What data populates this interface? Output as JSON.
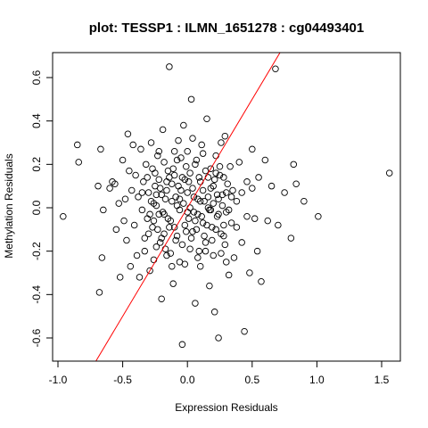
{
  "chart_data": {
    "type": "scatter",
    "title": "plot: TESSP1 : ILMN_1651278 : cg04493401",
    "xlabel": "Expression Residuals",
    "ylabel": "Methylation Residuals",
    "xlim": [
      -1.0,
      1.6
    ],
    "ylim": [
      -0.7,
      0.7
    ],
    "x_ticks": [
      -1.0,
      -0.5,
      0.0,
      0.5,
      1.0,
      1.5
    ],
    "x_tick_labels": [
      "-1.0",
      "-0.5",
      "0.0",
      "0.5",
      "1.0",
      "1.5"
    ],
    "y_ticks": [
      -0.6,
      -0.4,
      -0.2,
      0.0,
      0.2,
      0.4,
      0.6
    ],
    "y_tick_labels": [
      "-0.6",
      "-0.4",
      "-0.2",
      "0.0",
      "0.2",
      "0.4",
      "0.6"
    ],
    "grid": false,
    "point_style": "open-circle",
    "regression_line": {
      "slope": 1.0,
      "intercept": 0.0,
      "color": "#ff0000"
    },
    "points": [
      [
        -0.96,
        -0.04
      ],
      [
        -0.85,
        0.29
      ],
      [
        -0.84,
        0.21
      ],
      [
        -0.69,
        0.1
      ],
      [
        -0.68,
        -0.39
      ],
      [
        -0.67,
        0.27
      ],
      [
        -0.66,
        -0.23
      ],
      [
        -0.65,
        -0.01
      ],
      [
        -0.6,
        0.09
      ],
      [
        -0.58,
        0.12
      ],
      [
        -0.56,
        0.11
      ],
      [
        -0.55,
        -0.1
      ],
      [
        -0.53,
        0.02
      ],
      [
        -0.52,
        -0.32
      ],
      [
        -0.5,
        0.22
      ],
      [
        -0.49,
        -0.06
      ],
      [
        -0.48,
        0.04
      ],
      [
        -0.47,
        -0.15
      ],
      [
        -0.46,
        0.34
      ],
      [
        -0.45,
        0.17
      ],
      [
        -0.44,
        -0.27
      ],
      [
        -0.43,
        0.08
      ],
      [
        -0.42,
        0.29
      ],
      [
        -0.41,
        -0.08
      ],
      [
        -0.4,
        0.15
      ],
      [
        -0.39,
        -0.22
      ],
      [
        -0.38,
        0.05
      ],
      [
        -0.37,
        -0.32
      ],
      [
        -0.36,
        0.27
      ],
      [
        -0.35,
        -0.01
      ],
      [
        -0.34,
        0.12
      ],
      [
        -0.33,
        -0.14
      ],
      [
        -0.32,
        0.2
      ],
      [
        -0.31,
        -0.05
      ],
      [
        -0.3,
        0.07
      ],
      [
        -0.29,
        -0.29
      ],
      [
        -0.28,
        0.3
      ],
      [
        -0.27,
        -0.09
      ],
      [
        -0.26,
        0.02
      ],
      [
        -0.25,
        0.16
      ],
      [
        -0.24,
        -0.18
      ],
      [
        -0.23,
        0.24
      ],
      [
        -0.22,
        -0.03
      ],
      [
        -0.21,
        0.09
      ],
      [
        -0.2,
        -0.42
      ],
      [
        -0.19,
        0.36
      ],
      [
        -0.18,
        -0.12
      ],
      [
        -0.17,
        0.04
      ],
      [
        -0.16,
        -0.22
      ],
      [
        -0.15,
        0.17
      ],
      [
        -0.14,
        0.65
      ],
      [
        -0.13,
        -0.06
      ],
      [
        -0.12,
        0.11
      ],
      [
        -0.11,
        -0.35
      ],
      [
        -0.1,
        0.26
      ],
      [
        -0.09,
        -0.15
      ],
      [
        -0.08,
        0.01
      ],
      [
        -0.07,
        0.31
      ],
      [
        -0.06,
        -0.25
      ],
      [
        -0.05,
        0.08
      ],
      [
        -0.04,
        -0.63
      ],
      [
        -0.03,
        0.38
      ],
      [
        -0.02,
        -0.08
      ],
      [
        -0.01,
        0.19
      ],
      [
        0.0,
        -0.02
      ],
      [
        0.01,
        0.12
      ],
      [
        0.02,
        -0.19
      ],
      [
        0.03,
        0.5
      ],
      [
        0.04,
        -0.11
      ],
      [
        0.05,
        0.05
      ],
      [
        0.06,
        -0.44
      ],
      [
        0.07,
        0.22
      ],
      [
        0.08,
        -0.03
      ],
      [
        0.09,
        0.14
      ],
      [
        0.1,
        -0.27
      ],
      [
        0.11,
        0.29
      ],
      [
        0.12,
        -0.07
      ],
      [
        0.13,
        0.03
      ],
      [
        0.14,
        -0.16
      ],
      [
        0.15,
        0.41
      ],
      [
        0.16,
        0.0
      ],
      [
        0.17,
        -0.36
      ],
      [
        0.18,
        0.18
      ],
      [
        0.19,
        -0.09
      ],
      [
        0.2,
        0.1
      ],
      [
        0.21,
        -0.48
      ],
      [
        0.22,
        0.24
      ],
      [
        0.23,
        -0.04
      ],
      [
        0.24,
        -0.6
      ],
      [
        0.25,
        0.15
      ],
      [
        0.26,
        -0.21
      ],
      [
        0.27,
        0.06
      ],
      [
        0.28,
        -0.13
      ],
      [
        0.29,
        0.33
      ],
      [
        0.3,
        -0.02
      ],
      [
        0.31,
        0.11
      ],
      [
        0.32,
        -0.31
      ],
      [
        0.33,
        0.19
      ],
      [
        0.34,
        -0.07
      ],
      [
        0.35,
        0.08
      ],
      [
        0.36,
        -0.23
      ],
      [
        0.38,
        0.03
      ],
      [
        0.4,
        0.21
      ],
      [
        0.42,
        -0.16
      ],
      [
        0.44,
        -0.57
      ],
      [
        0.46,
        0.12
      ],
      [
        0.48,
        -0.3
      ],
      [
        0.5,
        0.27
      ],
      [
        0.52,
        -0.05
      ],
      [
        0.55,
        0.14
      ],
      [
        0.57,
        -0.34
      ],
      [
        0.6,
        0.22
      ],
      [
        0.62,
        -0.06
      ],
      [
        0.65,
        0.1
      ],
      [
        0.68,
        0.64
      ],
      [
        0.7,
        -0.08
      ],
      [
        0.75,
        0.07
      ],
      [
        0.8,
        -0.14
      ],
      [
        0.82,
        0.2
      ],
      [
        0.84,
        0.11
      ],
      [
        0.9,
        0.03
      ],
      [
        1.01,
        -0.04
      ],
      [
        1.56,
        0.16
      ],
      [
        -0.3,
        -0.12
      ],
      [
        -0.28,
        0.03
      ],
      [
        -0.26,
        -0.06
      ],
      [
        -0.25,
        0.1
      ],
      [
        -0.24,
        0.01
      ],
      [
        -0.23,
        -0.1
      ],
      [
        -0.22,
        0.13
      ],
      [
        -0.21,
        -0.16
      ],
      [
        -0.2,
        0.06
      ],
      [
        -0.19,
        -0.02
      ],
      [
        -0.18,
        0.21
      ],
      [
        -0.17,
        -0.19
      ],
      [
        -0.16,
        0.08
      ],
      [
        -0.15,
        -0.05
      ],
      [
        -0.14,
        0.14
      ],
      [
        -0.13,
        -0.21
      ],
      [
        -0.12,
        0.03
      ],
      [
        -0.11,
        0.18
      ],
      [
        -0.1,
        -0.09
      ],
      [
        -0.09,
        0.05
      ],
      [
        -0.08,
        -0.13
      ],
      [
        -0.07,
        0.1
      ],
      [
        -0.06,
        -0.01
      ],
      [
        -0.05,
        0.23
      ],
      [
        -0.04,
        -0.17
      ],
      [
        -0.03,
        0.02
      ],
      [
        -0.02,
        0.13
      ],
      [
        -0.01,
        -0.11
      ],
      [
        0.0,
        0.07
      ],
      [
        0.01,
        -0.05
      ],
      [
        0.02,
        0.16
      ],
      [
        0.03,
        -0.14
      ],
      [
        0.04,
        0.09
      ],
      [
        0.05,
        -0.02
      ],
      [
        0.06,
        0.2
      ],
      [
        0.07,
        -0.1
      ],
      [
        0.08,
        0.04
      ],
      [
        0.09,
        -0.2
      ],
      [
        0.1,
        0.12
      ],
      [
        0.11,
        -0.04
      ],
      [
        0.12,
        0.08
      ],
      [
        0.13,
        -0.13
      ],
      [
        0.14,
        0.17
      ],
      [
        0.15,
        -0.08
      ],
      [
        0.16,
        0.05
      ],
      [
        0.17,
        -0.01
      ],
      [
        0.18,
        0.09
      ],
      [
        0.19,
        -0.15
      ],
      [
        0.2,
        0.02
      ],
      [
        0.21,
        0.13
      ],
      [
        0.22,
        -0.1
      ],
      [
        0.23,
        0.06
      ],
      [
        0.24,
        -0.03
      ],
      [
        0.25,
        0.19
      ],
      [
        0.26,
        -0.12
      ],
      [
        0.27,
        0.01
      ],
      [
        0.28,
        0.14
      ],
      [
        0.29,
        -0.17
      ],
      [
        0.3,
        0.07
      ],
      [
        0.32,
        -0.01
      ],
      [
        -0.35,
        0.07
      ],
      [
        -0.33,
        -0.2
      ],
      [
        -0.31,
        0.14
      ],
      [
        -0.29,
        -0.03
      ],
      [
        -0.27,
        0.18
      ],
      [
        -0.26,
        -0.24
      ],
      [
        -0.24,
        0.06
      ],
      [
        -0.22,
        0.26
      ],
      [
        -0.2,
        -0.14
      ],
      [
        -0.18,
        -0.03
      ],
      [
        -0.16,
        0.12
      ],
      [
        -0.14,
        -0.09
      ],
      [
        -0.12,
        -0.27
      ],
      [
        -0.1,
        0.15
      ],
      [
        -0.08,
        0.22
      ],
      [
        -0.06,
        0.04
      ],
      [
        -0.04,
        0.14
      ],
      [
        -0.02,
        -0.26
      ],
      [
        0.0,
        0.26
      ],
      [
        0.02,
        0.0
      ],
      [
        0.04,
        0.32
      ],
      [
        0.06,
        -0.06
      ],
      [
        0.08,
        -0.23
      ],
      [
        0.1,
        0.03
      ],
      [
        0.12,
        0.25
      ],
      [
        0.14,
        -0.2
      ],
      [
        0.16,
        0.14
      ],
      [
        0.18,
        -0.01
      ],
      [
        0.2,
        -0.22
      ],
      [
        0.22,
        0.16
      ],
      [
        0.24,
        0.04
      ],
      [
        0.26,
        0.3
      ],
      [
        0.28,
        -0.08
      ],
      [
        0.3,
        -0.25
      ],
      [
        0.34,
        0.05
      ],
      [
        0.38,
        -0.09
      ],
      [
        0.42,
        0.07
      ],
      [
        0.46,
        -0.04
      ],
      [
        0.5,
        0.09
      ],
      [
        0.54,
        -0.2
      ]
    ]
  }
}
